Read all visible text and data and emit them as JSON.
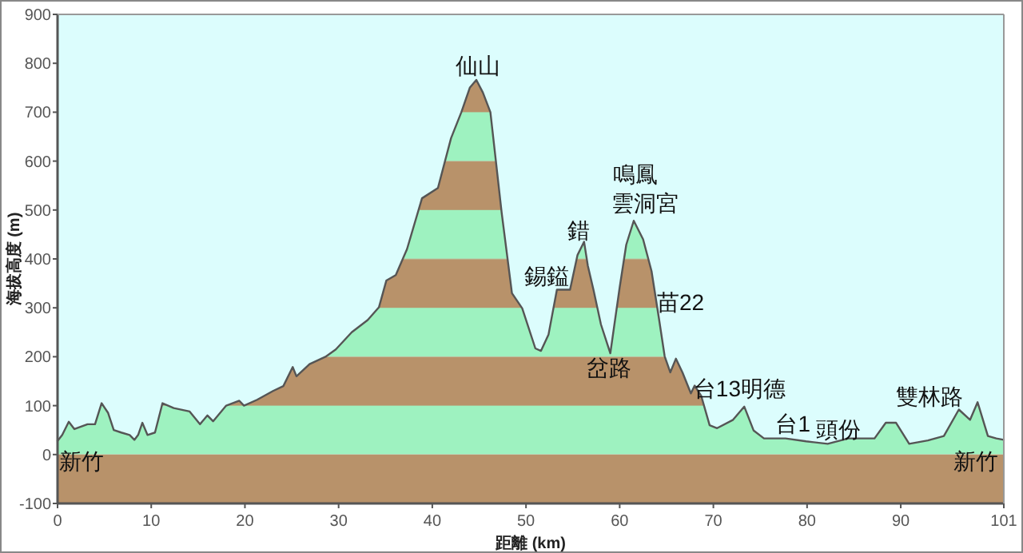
{
  "chart_data": {
    "type": "area",
    "xlabel": "距離 (km)",
    "ylabel": "海拔高度 (m)",
    "xlim": [
      0,
      101
    ],
    "ylim": [
      -100,
      900
    ],
    "xticks": [
      0,
      10,
      20,
      30,
      40,
      50,
      60,
      70,
      80,
      90,
      101
    ],
    "yticks": [
      -100,
      0,
      100,
      200,
      300,
      400,
      500,
      600,
      700,
      800,
      900
    ],
    "grid": false,
    "bands": [
      {
        "axis": "y",
        "from": -100,
        "to": 0,
        "color": "#b8926a"
      }
    ],
    "series": [
      {
        "color": "#555555",
        "x": [
          0,
          0.5,
          1.2,
          1.8,
          3.2,
          4.0,
          4.7,
          5.4,
          6.0,
          6.8,
          7.7,
          8.2,
          8.6,
          9.05,
          9.6,
          10.4,
          11.2,
          12.4,
          14.1,
          15.2,
          16.0,
          16.6,
          18.0,
          19.4,
          19.9,
          21.3,
          23.0,
          24.1,
          25.1,
          25.5,
          26.9,
          28.6,
          29.7,
          31.4,
          33.1,
          34.3,
          35.1,
          36.1,
          37.3,
          38.9,
          40.6,
          42.0,
          43.1,
          44.0,
          44.7,
          45.4,
          46.2,
          47.4,
          48.5,
          49.6,
          51.0,
          51.6,
          52.4,
          53.3,
          54.7,
          55.5,
          56.2,
          56.6,
          57.2,
          58.0,
          59.0,
          60.0,
          60.7,
          61.5,
          62.5,
          63.4,
          64.2,
          64.8,
          65.4,
          66.0,
          66.7,
          67.6,
          68.0,
          68.7,
          69.6,
          70.4,
          72.1,
          73.3,
          74.3,
          75.4,
          77.7,
          79.9,
          82.2,
          84.4,
          87.2,
          88.4,
          89.5,
          90.9,
          92.9,
          94.6,
          96.2,
          97.4,
          98.2,
          99.3,
          100.2,
          101
        ],
        "values": [
          28,
          40,
          67,
          52,
          62,
          62,
          105,
          85,
          50,
          45,
          40,
          30,
          40,
          65,
          40,
          45,
          105,
          95,
          88,
          62,
          80,
          68,
          100,
          110,
          100,
          112,
          130,
          140,
          179,
          160,
          185,
          200,
          215,
          250,
          275,
          301,
          356,
          367,
          420,
          524,
          545,
          647,
          700,
          750,
          766,
          740,
          700,
          495,
          330,
          299,
          217,
          212,
          245,
          337,
          337,
          408,
          435,
          386,
          337,
          266,
          207,
          342,
          429,
          478,
          440,
          375,
          277,
          201,
          168,
          196,
          168,
          125,
          141,
          120,
          60,
          54,
          71,
          98,
          49,
          33,
          33,
          27,
          22,
          33,
          33,
          65,
          65,
          22,
          29,
          38,
          92,
          71,
          107,
          38,
          33,
          30
        ]
      }
    ],
    "annotations": [
      "仙山",
      "錫鎰",
      "錯",
      "鳴鳳",
      "雲洞宮",
      "苗22",
      "岔路",
      "台13明德",
      "台1",
      "頭份",
      "雙林路",
      "新竹",
      "新竹"
    ]
  }
}
